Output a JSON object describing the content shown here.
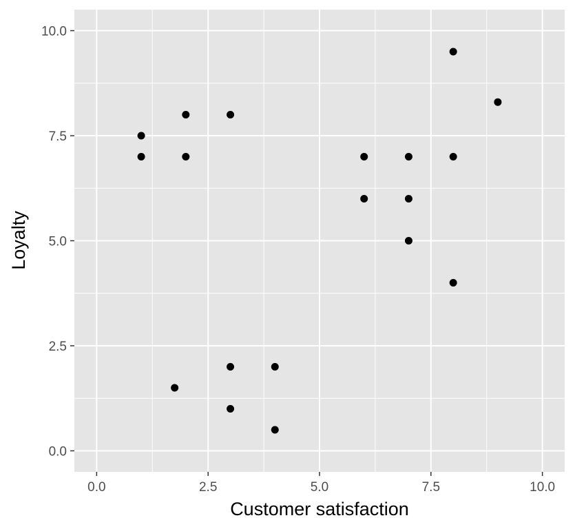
{
  "chart_data": {
    "type": "scatter",
    "title": "",
    "xlabel": "Customer satisfaction",
    "ylabel": "Loyalty",
    "xlim": [
      -0.5,
      10.5
    ],
    "ylim": [
      -0.5,
      10.5
    ],
    "x_ticks": [
      "0.0",
      "2.5",
      "5.0",
      "7.5",
      "10.0"
    ],
    "y_ticks": [
      "0.0",
      "2.5",
      "5.0",
      "7.5",
      "10.0"
    ],
    "x_tick_values": [
      0,
      2.5,
      5,
      7.5,
      10
    ],
    "y_tick_values": [
      0,
      2.5,
      5,
      7.5,
      10
    ],
    "grid": true,
    "panel_color": "#e5e5e5",
    "grid_color": "#ffffff",
    "point_color": "#000000",
    "points": [
      {
        "x": 1,
        "y": 7.5
      },
      {
        "x": 1,
        "y": 7
      },
      {
        "x": 2,
        "y": 8
      },
      {
        "x": 2,
        "y": 7
      },
      {
        "x": 3,
        "y": 8
      },
      {
        "x": 6,
        "y": 7
      },
      {
        "x": 6,
        "y": 6
      },
      {
        "x": 7,
        "y": 7
      },
      {
        "x": 7,
        "y": 6
      },
      {
        "x": 7,
        "y": 5
      },
      {
        "x": 8,
        "y": 9.5
      },
      {
        "x": 8,
        "y": 7
      },
      {
        "x": 8,
        "y": 4
      },
      {
        "x": 9,
        "y": 8.3
      },
      {
        "x": 1.75,
        "y": 1.5
      },
      {
        "x": 3,
        "y": 2
      },
      {
        "x": 3,
        "y": 1
      },
      {
        "x": 4,
        "y": 2
      },
      {
        "x": 4,
        "y": 0.5
      }
    ]
  }
}
